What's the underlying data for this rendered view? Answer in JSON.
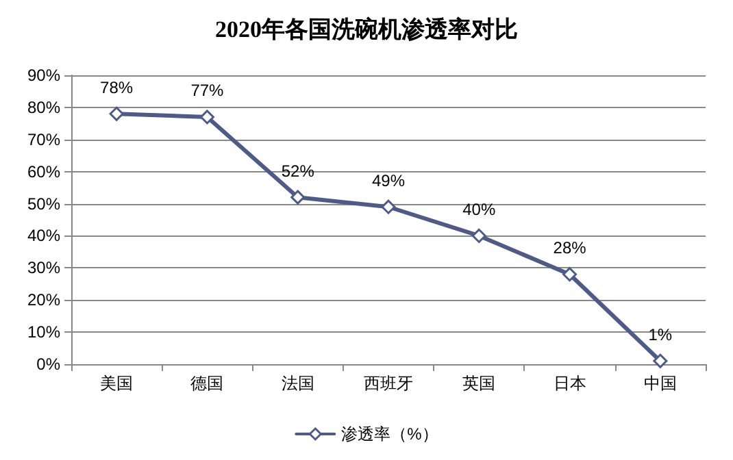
{
  "chart_data": {
    "type": "line",
    "title": "2020年各国洗碗机渗透率对比",
    "categories": [
      "美国",
      "德国",
      "法国",
      "西班牙",
      "英国",
      "日本",
      "中国"
    ],
    "series": [
      {
        "name": "渗透率（%）",
        "color": "#4e5b88",
        "values": [
          78,
          77,
          52,
          49,
          40,
          28,
          1
        ],
        "value_labels": [
          "78%",
          "77%",
          "52%",
          "49%",
          "40%",
          "28%",
          "1%"
        ]
      }
    ],
    "ylim": [
      0,
      90
    ],
    "yticks": [
      {
        "value": 0,
        "label": "0%"
      },
      {
        "value": 10,
        "label": "10%"
      },
      {
        "value": 20,
        "label": "20%"
      },
      {
        "value": 30,
        "label": "30%"
      },
      {
        "value": 40,
        "label": "40%"
      },
      {
        "value": 50,
        "label": "50%"
      },
      {
        "value": 60,
        "label": "60%"
      },
      {
        "value": 70,
        "label": "70%"
      },
      {
        "value": 80,
        "label": "80%"
      },
      {
        "value": 90,
        "label": "90%"
      }
    ],
    "grid": "y",
    "legend": "bottom",
    "marker": "diamond",
    "line_style": "solid"
  }
}
